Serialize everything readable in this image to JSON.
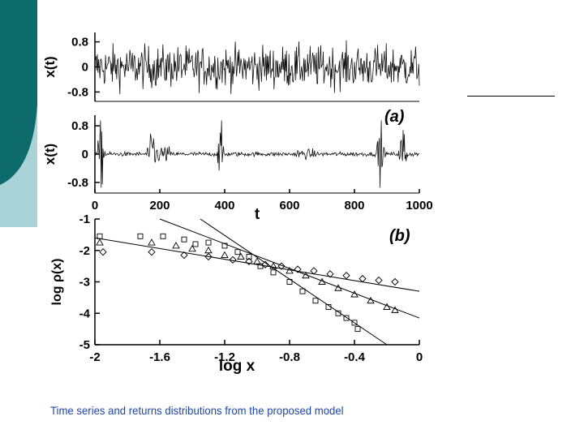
{
  "caption": "Time series and returns distributions from the proposed model",
  "colors": {
    "slide_teal_dark": "#0e6b6b",
    "slide_teal_light": "#a9d3d6",
    "caption": "#1f47a8"
  },
  "chart_data": [
    {
      "type": "line",
      "panel": "top time series",
      "ylabel": "x(t)",
      "yticks": [
        "0.8",
        "0",
        "-0.8"
      ],
      "ylim": [
        -1.1,
        1.1
      ],
      "xlim": [
        0,
        1000
      ],
      "note": "noisy uniform-amplitude series"
    },
    {
      "type": "line",
      "panel": "bottom time series",
      "panel_label": "(a)",
      "ylabel": "x(t)",
      "xlabel": "t",
      "yticks": [
        "0.8",
        "0",
        "-0.8"
      ],
      "xticks": [
        "0",
        "200",
        "400",
        "600",
        "800",
        "1000"
      ],
      "ylim": [
        -1.1,
        1.1
      ],
      "xlim": [
        0,
        1000
      ],
      "bursts_at_t": [
        20,
        180,
        390,
        880,
        950
      ],
      "note": "mostly quiet series with intermittent bursts"
    },
    {
      "type": "scatter",
      "panel_label": "(b)",
      "xlabel": "log x",
      "ylabel": "log ρ(x)",
      "xlim": [
        -2,
        0
      ],
      "ylim": [
        -5,
        -1
      ],
      "xticks": [
        "-2",
        "-1.6",
        "-1.2",
        "-0.8",
        "-0.4",
        "0"
      ],
      "yticks": [
        "-1",
        "-2",
        "-3",
        "-4",
        "-5"
      ],
      "series": [
        {
          "marker": "square",
          "x": [
            -1.97,
            -1.72,
            -1.58,
            -1.45,
            -1.38,
            -1.3,
            -1.2,
            -1.12,
            -1.05,
            -0.98,
            -0.9,
            -0.8,
            -0.72,
            -0.64,
            -0.56,
            -0.5,
            -0.45,
            -0.4,
            -0.38
          ],
          "y": [
            -1.55,
            -1.55,
            -1.55,
            -1.65,
            -1.8,
            -1.75,
            -1.85,
            -2.05,
            -2.2,
            -2.5,
            -2.7,
            -3.0,
            -3.3,
            -3.6,
            -3.8,
            -4.0,
            -4.15,
            -4.3,
            -4.5
          ]
        },
        {
          "marker": "triangle",
          "x": [
            -1.97,
            -1.65,
            -1.5,
            -1.4,
            -1.3,
            -1.2,
            -1.1,
            -1.0,
            -0.9,
            -0.8,
            -0.7,
            -0.6,
            -0.5,
            -0.4,
            -0.3,
            -0.2,
            -0.15
          ],
          "y": [
            -1.75,
            -1.75,
            -1.85,
            -1.95,
            -2.0,
            -2.15,
            -2.2,
            -2.35,
            -2.5,
            -2.65,
            -2.8,
            -3.0,
            -3.2,
            -3.4,
            -3.6,
            -3.8,
            -3.9
          ]
        },
        {
          "marker": "diamond",
          "x": [
            -1.95,
            -1.65,
            -1.45,
            -1.3,
            -1.15,
            -1.05,
            -0.95,
            -0.85,
            -0.75,
            -0.65,
            -0.55,
            -0.45,
            -0.35,
            -0.25,
            -0.15
          ],
          "y": [
            -2.05,
            -2.05,
            -2.15,
            -2.2,
            -2.3,
            -2.35,
            -2.45,
            -2.5,
            -2.6,
            -2.65,
            -2.75,
            -2.8,
            -2.9,
            -2.95,
            -3.0
          ]
        }
      ],
      "fit_lines": [
        {
          "x": [
            -2,
            0
          ],
          "y": [
            -1.6,
            -3.3
          ]
        },
        {
          "x": [
            -1.6,
            0
          ],
          "y": [
            -1.0,
            -4.15
          ]
        },
        {
          "x": [
            -1.35,
            -0.2
          ],
          "y": [
            -1.0,
            -5.0
          ]
        }
      ]
    }
  ]
}
